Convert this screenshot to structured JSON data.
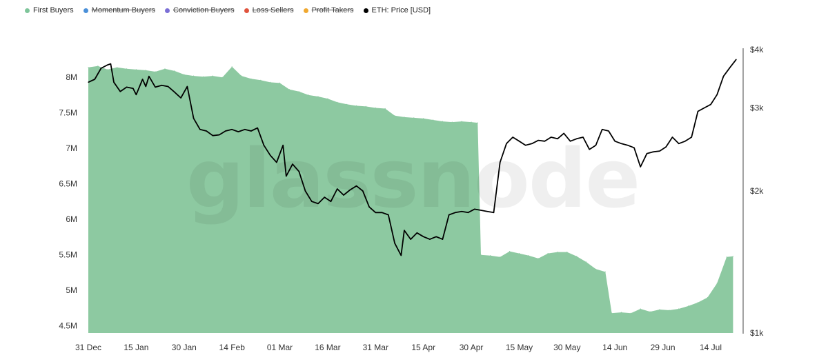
{
  "legend": [
    {
      "label": "First Buyers",
      "color": "#7ec59a",
      "active": true
    },
    {
      "label": "Momentum Buyers",
      "color": "#4a90d9",
      "active": false
    },
    {
      "label": "Conviction Buyers",
      "color": "#7b6fd6",
      "active": false
    },
    {
      "label": "Loss Sellers",
      "color": "#e0533d",
      "active": false
    },
    {
      "label": "Profit Takers",
      "color": "#f0a830",
      "active": false
    },
    {
      "label": "ETH: Price [USD]",
      "color": "#000000",
      "active": true
    }
  ],
  "watermark": "glassnode",
  "chart_data": {
    "type": "area",
    "title": "",
    "x_start": "2024-12-31",
    "x_end": "2025-07-22",
    "x_ticks": [
      "31 Dec",
      "15 Jan",
      "30 Jan",
      "14 Feb",
      "01 Mar",
      "16 Mar",
      "31 Mar",
      "15 Apr",
      "30 Apr",
      "15 May",
      "30 May",
      "14 Jun",
      "29 Jun",
      "14 Jul"
    ],
    "y_left": {
      "ticks": [
        "8M",
        "7.5M",
        "7M",
        "6.5M",
        "6M",
        "5.5M",
        "5M",
        "4.5M"
      ],
      "tick_values": [
        8000000,
        7500000,
        7000000,
        6500000,
        6000000,
        5500000,
        5000000,
        4500000
      ],
      "min": 4400000,
      "max": 8400000
    },
    "y_right": {
      "ticks": [
        "$4k",
        "$3k",
        "$2k",
        "$1k"
      ],
      "tick_values": [
        4000,
        3000,
        2000,
        1000
      ],
      "scale": "log",
      "min": 1000,
      "max": 4000
    },
    "grid": false,
    "legend_position": "top-left",
    "series": [
      {
        "name": "First Buyers",
        "axis": "left",
        "style": "area",
        "color": "#8dc9a1",
        "points": [
          [
            "2024-12-31",
            8140000
          ],
          [
            "2025-01-03",
            8160000
          ],
          [
            "2025-01-06",
            8110000
          ],
          [
            "2025-01-09",
            8140000
          ],
          [
            "2025-01-12",
            8120000
          ],
          [
            "2025-01-15",
            8110000
          ],
          [
            "2025-01-18",
            8100000
          ],
          [
            "2025-01-21",
            8080000
          ],
          [
            "2025-01-24",
            8120000
          ],
          [
            "2025-01-27",
            8090000
          ],
          [
            "2025-01-30",
            8040000
          ],
          [
            "2025-02-02",
            8020000
          ],
          [
            "2025-02-05",
            8010000
          ],
          [
            "2025-02-08",
            8020000
          ],
          [
            "2025-02-11",
            8000000
          ],
          [
            "2025-02-14",
            8150000
          ],
          [
            "2025-02-17",
            8020000
          ],
          [
            "2025-02-20",
            7980000
          ],
          [
            "2025-02-23",
            7960000
          ],
          [
            "2025-02-26",
            7930000
          ],
          [
            "2025-03-01",
            7920000
          ],
          [
            "2025-03-04",
            7830000
          ],
          [
            "2025-03-07",
            7800000
          ],
          [
            "2025-03-10",
            7750000
          ],
          [
            "2025-03-13",
            7730000
          ],
          [
            "2025-03-16",
            7700000
          ],
          [
            "2025-03-19",
            7650000
          ],
          [
            "2025-03-22",
            7620000
          ],
          [
            "2025-03-25",
            7600000
          ],
          [
            "2025-03-28",
            7590000
          ],
          [
            "2025-03-31",
            7570000
          ],
          [
            "2025-04-03",
            7560000
          ],
          [
            "2025-04-06",
            7460000
          ],
          [
            "2025-04-09",
            7440000
          ],
          [
            "2025-04-12",
            7430000
          ],
          [
            "2025-04-15",
            7420000
          ],
          [
            "2025-04-18",
            7400000
          ],
          [
            "2025-04-21",
            7380000
          ],
          [
            "2025-04-24",
            7370000
          ],
          [
            "2025-04-27",
            7380000
          ],
          [
            "2025-04-30",
            7370000
          ],
          [
            "2025-05-02",
            7360000
          ],
          [
            "2025-05-03",
            5500000
          ],
          [
            "2025-05-06",
            5490000
          ],
          [
            "2025-05-09",
            5470000
          ],
          [
            "2025-05-12",
            5550000
          ],
          [
            "2025-05-15",
            5520000
          ],
          [
            "2025-05-18",
            5490000
          ],
          [
            "2025-05-21",
            5450000
          ],
          [
            "2025-05-24",
            5520000
          ],
          [
            "2025-05-27",
            5540000
          ],
          [
            "2025-05-30",
            5540000
          ],
          [
            "2025-06-02",
            5480000
          ],
          [
            "2025-06-05",
            5400000
          ],
          [
            "2025-06-08",
            5300000
          ],
          [
            "2025-06-11",
            5260000
          ],
          [
            "2025-06-13",
            4680000
          ],
          [
            "2025-06-16",
            4690000
          ],
          [
            "2025-06-19",
            4680000
          ],
          [
            "2025-06-22",
            4740000
          ],
          [
            "2025-06-25",
            4700000
          ],
          [
            "2025-06-28",
            4730000
          ],
          [
            "2025-07-01",
            4720000
          ],
          [
            "2025-07-04",
            4740000
          ],
          [
            "2025-07-07",
            4780000
          ],
          [
            "2025-07-10",
            4830000
          ],
          [
            "2025-07-13",
            4900000
          ],
          [
            "2025-07-16",
            5100000
          ],
          [
            "2025-07-19",
            5470000
          ],
          [
            "2025-07-21",
            5480000
          ]
        ]
      },
      {
        "name": "ETH: Price [USD]",
        "axis": "right",
        "style": "line",
        "color": "#000000",
        "points": [
          [
            "2024-12-31",
            3400
          ],
          [
            "2025-01-02",
            3450
          ],
          [
            "2025-01-04",
            3640
          ],
          [
            "2025-01-06",
            3700
          ],
          [
            "2025-01-07",
            3720
          ],
          [
            "2025-01-08",
            3400
          ],
          [
            "2025-01-10",
            3250
          ],
          [
            "2025-01-12",
            3320
          ],
          [
            "2025-01-14",
            3300
          ],
          [
            "2025-01-15",
            3200
          ],
          [
            "2025-01-17",
            3450
          ],
          [
            "2025-01-18",
            3330
          ],
          [
            "2025-01-19",
            3500
          ],
          [
            "2025-01-21",
            3320
          ],
          [
            "2025-01-23",
            3350
          ],
          [
            "2025-01-25",
            3330
          ],
          [
            "2025-01-27",
            3240
          ],
          [
            "2025-01-29",
            3150
          ],
          [
            "2025-01-31",
            3330
          ],
          [
            "2025-02-02",
            2850
          ],
          [
            "2025-02-04",
            2700
          ],
          [
            "2025-02-06",
            2680
          ],
          [
            "2025-02-08",
            2620
          ],
          [
            "2025-02-10",
            2630
          ],
          [
            "2025-02-12",
            2680
          ],
          [
            "2025-02-14",
            2700
          ],
          [
            "2025-02-16",
            2670
          ],
          [
            "2025-02-18",
            2700
          ],
          [
            "2025-02-20",
            2680
          ],
          [
            "2025-02-22",
            2720
          ],
          [
            "2025-02-24",
            2500
          ],
          [
            "2025-02-26",
            2380
          ],
          [
            "2025-02-28",
            2300
          ],
          [
            "2025-03-02",
            2500
          ],
          [
            "2025-03-03",
            2150
          ],
          [
            "2025-03-05",
            2280
          ],
          [
            "2025-03-07",
            2200
          ],
          [
            "2025-03-09",
            2000
          ],
          [
            "2025-03-11",
            1900
          ],
          [
            "2025-03-13",
            1880
          ],
          [
            "2025-03-15",
            1940
          ],
          [
            "2025-03-17",
            1900
          ],
          [
            "2025-03-19",
            2020
          ],
          [
            "2025-03-21",
            1960
          ],
          [
            "2025-03-23",
            2010
          ],
          [
            "2025-03-25",
            2050
          ],
          [
            "2025-03-27",
            2000
          ],
          [
            "2025-03-29",
            1850
          ],
          [
            "2025-03-31",
            1800
          ],
          [
            "2025-04-02",
            1800
          ],
          [
            "2025-04-04",
            1780
          ],
          [
            "2025-04-06",
            1550
          ],
          [
            "2025-04-08",
            1460
          ],
          [
            "2025-04-09",
            1650
          ],
          [
            "2025-04-11",
            1580
          ],
          [
            "2025-04-13",
            1630
          ],
          [
            "2025-04-15",
            1600
          ],
          [
            "2025-04-17",
            1580
          ],
          [
            "2025-04-19",
            1600
          ],
          [
            "2025-04-21",
            1580
          ],
          [
            "2025-04-23",
            1780
          ],
          [
            "2025-04-25",
            1800
          ],
          [
            "2025-04-27",
            1810
          ],
          [
            "2025-04-29",
            1800
          ],
          [
            "2025-05-01",
            1830
          ],
          [
            "2025-05-03",
            1820
          ],
          [
            "2025-05-05",
            1810
          ],
          [
            "2025-05-07",
            1800
          ],
          [
            "2025-05-09",
            2300
          ],
          [
            "2025-05-11",
            2520
          ],
          [
            "2025-05-13",
            2600
          ],
          [
            "2025-05-15",
            2550
          ],
          [
            "2025-05-17",
            2500
          ],
          [
            "2025-05-19",
            2520
          ],
          [
            "2025-05-21",
            2560
          ],
          [
            "2025-05-23",
            2550
          ],
          [
            "2025-05-25",
            2600
          ],
          [
            "2025-05-27",
            2580
          ],
          [
            "2025-05-29",
            2650
          ],
          [
            "2025-05-31",
            2550
          ],
          [
            "2025-06-02",
            2580
          ],
          [
            "2025-06-04",
            2600
          ],
          [
            "2025-06-06",
            2450
          ],
          [
            "2025-06-08",
            2500
          ],
          [
            "2025-06-10",
            2700
          ],
          [
            "2025-06-12",
            2680
          ],
          [
            "2025-06-14",
            2550
          ],
          [
            "2025-06-16",
            2520
          ],
          [
            "2025-06-18",
            2500
          ],
          [
            "2025-06-20",
            2470
          ],
          [
            "2025-06-22",
            2250
          ],
          [
            "2025-06-24",
            2400
          ],
          [
            "2025-06-26",
            2420
          ],
          [
            "2025-06-28",
            2430
          ],
          [
            "2025-06-30",
            2480
          ],
          [
            "2025-07-02",
            2600
          ],
          [
            "2025-07-04",
            2520
          ],
          [
            "2025-07-06",
            2550
          ],
          [
            "2025-07-08",
            2600
          ],
          [
            "2025-07-10",
            2950
          ],
          [
            "2025-07-12",
            3000
          ],
          [
            "2025-07-14",
            3050
          ],
          [
            "2025-07-16",
            3200
          ],
          [
            "2025-07-18",
            3500
          ],
          [
            "2025-07-20",
            3650
          ],
          [
            "2025-07-22",
            3800
          ]
        ]
      }
    ]
  }
}
